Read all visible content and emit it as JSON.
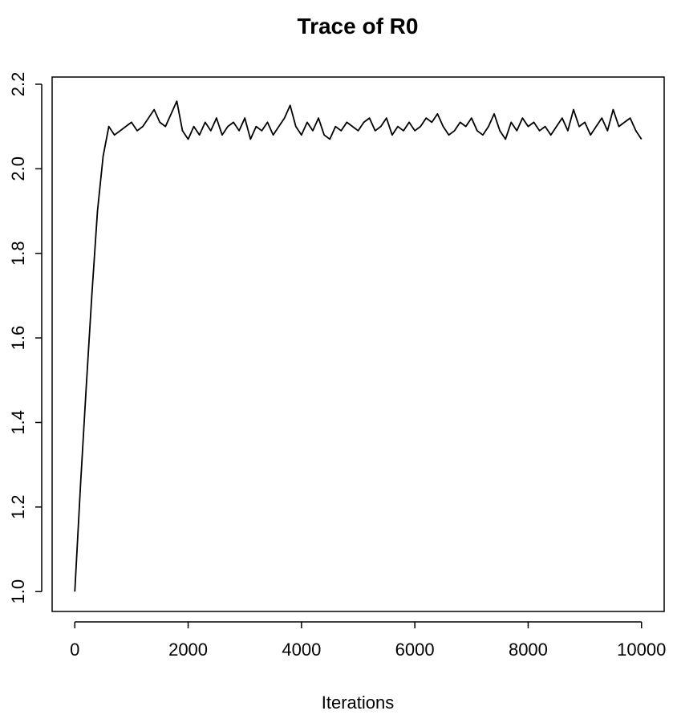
{
  "chart_data": {
    "type": "line",
    "title": "Trace of R0",
    "xlabel": "Iterations",
    "color": "#000000",
    "x": [
      0,
      100,
      200,
      300,
      400,
      500,
      600,
      700,
      800,
      900,
      1000,
      1100,
      1200,
      1300,
      1400,
      1500,
      1600,
      1700,
      1800,
      1900,
      2000,
      2100,
      2200,
      2300,
      2400,
      2500,
      2600,
      2700,
      2800,
      2900,
      3000,
      3100,
      3200,
      3300,
      3400,
      3500,
      3600,
      3700,
      3800,
      3900,
      4000,
      4100,
      4200,
      4300,
      4400,
      4500,
      4600,
      4700,
      4800,
      4900,
      5000,
      5100,
      5200,
      5300,
      5400,
      5500,
      5600,
      5700,
      5800,
      5900,
      6000,
      6100,
      6200,
      6300,
      6400,
      6500,
      6600,
      6700,
      6800,
      6900,
      7000,
      7100,
      7200,
      7300,
      7400,
      7500,
      7600,
      7700,
      7800,
      7900,
      8000,
      8100,
      8200,
      8300,
      8400,
      8500,
      8600,
      8700,
      8800,
      8900,
      9000,
      9100,
      9200,
      9300,
      9400,
      9500,
      9600,
      9700,
      9800,
      9900,
      10000
    ],
    "values": [
      1.0,
      1.25,
      1.48,
      1.7,
      1.9,
      2.03,
      2.1,
      2.08,
      2.09,
      2.1,
      2.11,
      2.09,
      2.1,
      2.12,
      2.14,
      2.11,
      2.1,
      2.13,
      2.16,
      2.09,
      2.07,
      2.1,
      2.08,
      2.11,
      2.09,
      2.12,
      2.08,
      2.1,
      2.11,
      2.09,
      2.12,
      2.07,
      2.1,
      2.09,
      2.11,
      2.08,
      2.1,
      2.12,
      2.15,
      2.1,
      2.08,
      2.11,
      2.09,
      2.12,
      2.08,
      2.07,
      2.1,
      2.09,
      2.11,
      2.1,
      2.09,
      2.11,
      2.12,
      2.09,
      2.1,
      2.12,
      2.08,
      2.1,
      2.09,
      2.11,
      2.09,
      2.1,
      2.12,
      2.11,
      2.13,
      2.1,
      2.08,
      2.09,
      2.11,
      2.1,
      2.12,
      2.09,
      2.08,
      2.1,
      2.13,
      2.09,
      2.07,
      2.11,
      2.09,
      2.12,
      2.1,
      2.11,
      2.09,
      2.1,
      2.08,
      2.1,
      2.12,
      2.09,
      2.14,
      2.1,
      2.11,
      2.08,
      2.1,
      2.12,
      2.09,
      2.14,
      2.1,
      2.11,
      2.12,
      2.09,
      2.07
    ],
    "xlim": [
      -400,
      10400
    ],
    "ylim": [
      0.953,
      2.217
    ],
    "xticks": [
      0,
      2000,
      4000,
      6000,
      8000,
      10000
    ],
    "yticks": [
      {
        "value": 1,
        "label": "1.0"
      },
      1.2,
      1.4,
      1.6,
      1.8,
      {
        "value": 2,
        "label": "2.0"
      },
      2.2
    ]
  }
}
